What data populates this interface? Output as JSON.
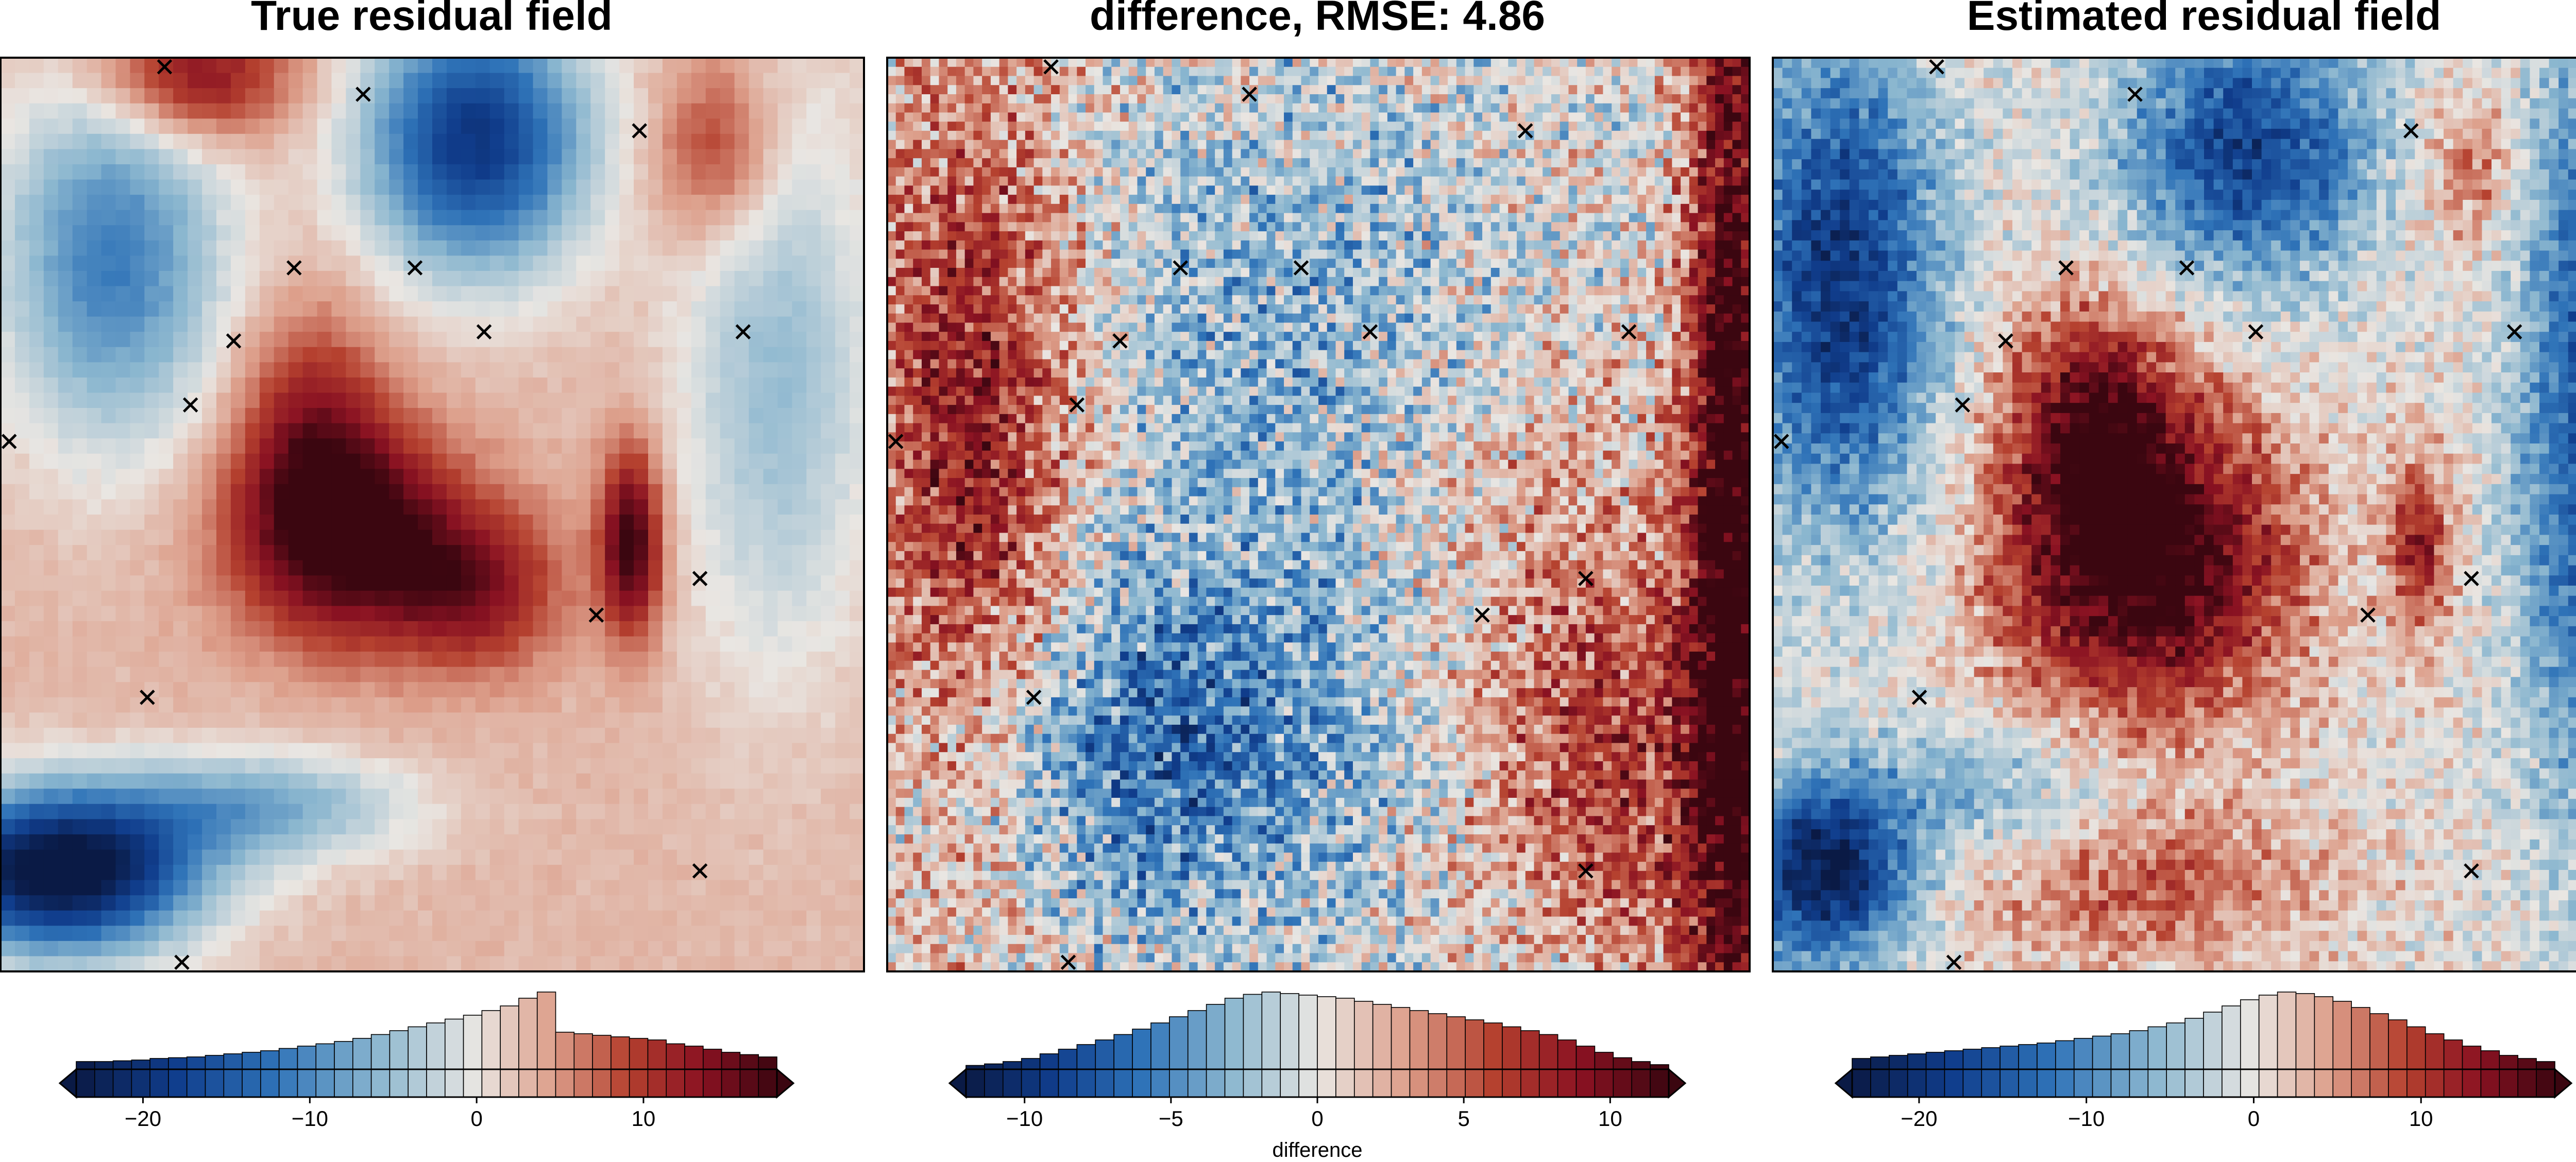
{
  "chart_data": [
    {
      "type": "heatmap",
      "title": "True residual field",
      "grid": {
        "rows": 60,
        "cols": 60
      },
      "texture": "smooth",
      "seed": 11,
      "baseline": 3,
      "blobs": [
        {
          "x": 0.4,
          "y": 0.52,
          "sx": 0.09,
          "sy": 0.08,
          "amp": 17
        },
        {
          "x": 0.55,
          "y": 0.58,
          "sx": 0.07,
          "sy": 0.06,
          "amp": 10
        },
        {
          "x": 0.36,
          "y": 0.4,
          "sx": 0.06,
          "sy": 0.09,
          "amp": 8
        },
        {
          "x": 0.73,
          "y": 0.53,
          "sx": 0.025,
          "sy": 0.07,
          "amp": 16
        },
        {
          "x": 0.22,
          "y": 0.02,
          "sx": 0.08,
          "sy": 0.05,
          "amp": 12
        },
        {
          "x": 0.83,
          "y": 0.1,
          "sx": 0.05,
          "sy": 0.07,
          "amp": 8
        },
        {
          "x": 0.55,
          "y": 0.09,
          "sx": 0.09,
          "sy": 0.1,
          "amp": -22
        },
        {
          "x": 0.13,
          "y": 0.22,
          "sx": 0.09,
          "sy": 0.14,
          "amp": -14
        },
        {
          "x": 0.9,
          "y": 0.35,
          "sx": 0.08,
          "sy": 0.22,
          "amp": -8
        },
        {
          "x": 0.07,
          "y": 0.89,
          "sx": 0.11,
          "sy": 0.06,
          "amp": -30
        },
        {
          "x": 0.3,
          "y": 0.82,
          "sx": 0.12,
          "sy": 0.04,
          "amp": -10
        }
      ],
      "noise": 0.5,
      "colorbar": {
        "ticks": [
          -20,
          -10,
          0,
          10
        ],
        "range": [
          -24,
          18
        ],
        "label": "",
        "hist_shape": [
          0.1,
          0.1,
          0.11,
          0.12,
          0.14,
          0.15,
          0.16,
          0.18,
          0.2,
          0.22,
          0.24,
          0.27,
          0.3,
          0.33,
          0.36,
          0.4,
          0.45,
          0.5,
          0.55,
          0.6,
          0.65,
          0.7,
          0.76,
          0.82,
          0.92,
          1.0,
          0.48,
          0.46,
          0.44,
          0.42,
          0.4,
          0.38,
          0.33,
          0.3,
          0.26,
          0.22,
          0.19,
          0.16
        ]
      }
    },
    {
      "type": "heatmap",
      "title": "difference, RMSE: 4.86",
      "grid": {
        "rows": 100,
        "cols": 100
      },
      "texture": "noisy",
      "seed": 7,
      "baseline": 0,
      "blobs": [
        {
          "x": 0.1,
          "y": 0.45,
          "sx": 0.09,
          "sy": 0.32,
          "amp": 9
        },
        {
          "x": 0.3,
          "y": 0.75,
          "sx": 0.18,
          "sy": 0.14,
          "amp": -7
        },
        {
          "x": 0.45,
          "y": 0.3,
          "sx": 0.18,
          "sy": 0.2,
          "amp": -3
        },
        {
          "x": 0.98,
          "y": 0.5,
          "sx": 0.04,
          "sy": 0.6,
          "amp": 13
        },
        {
          "x": 0.85,
          "y": 0.8,
          "sx": 0.1,
          "sy": 0.15,
          "amp": 5
        },
        {
          "x": 0.78,
          "y": 0.6,
          "sx": 0.12,
          "sy": 0.2,
          "amp": 3
        }
      ],
      "noise": 3.2,
      "colorbar": {
        "ticks": [
          -10,
          -5,
          0,
          5,
          10
        ],
        "range": [
          -12,
          12
        ],
        "label": "difference",
        "hist_shape": [
          0.05,
          0.07,
          0.1,
          0.14,
          0.2,
          0.26,
          0.32,
          0.38,
          0.45,
          0.52,
          0.6,
          0.68,
          0.76,
          0.84,
          0.92,
          0.97,
          1.0,
          0.98,
          0.96,
          0.94,
          0.92,
          0.88,
          0.84,
          0.8,
          0.76,
          0.72,
          0.68,
          0.64,
          0.6,
          0.55,
          0.5,
          0.45,
          0.38,
          0.3,
          0.22,
          0.15,
          0.1,
          0.06
        ]
      }
    },
    {
      "type": "heatmap",
      "title": "Estimated residual field",
      "grid": {
        "rows": 90,
        "cols": 90
      },
      "texture": "noisy",
      "seed": 23,
      "baseline": 0,
      "blobs": [
        {
          "x": 0.43,
          "y": 0.55,
          "sx": 0.12,
          "sy": 0.12,
          "amp": 21
        },
        {
          "x": 0.37,
          "y": 0.38,
          "sx": 0.07,
          "sy": 0.09,
          "amp": 12
        },
        {
          "x": 0.75,
          "y": 0.53,
          "sx": 0.025,
          "sy": 0.07,
          "amp": 12
        },
        {
          "x": 0.81,
          "y": 0.12,
          "sx": 0.04,
          "sy": 0.06,
          "amp": 8
        },
        {
          "x": 0.44,
          "y": 0.91,
          "sx": 0.14,
          "sy": 0.06,
          "amp": 8
        },
        {
          "x": 0.55,
          "y": 0.1,
          "sx": 0.1,
          "sy": 0.1,
          "amp": -18
        },
        {
          "x": 0.08,
          "y": 0.25,
          "sx": 0.08,
          "sy": 0.18,
          "amp": -20
        },
        {
          "x": 0.95,
          "y": 0.4,
          "sx": 0.06,
          "sy": 0.3,
          "amp": -16
        },
        {
          "x": 0.06,
          "y": 0.89,
          "sx": 0.07,
          "sy": 0.07,
          "amp": -24
        },
        {
          "x": 0.25,
          "y": 0.8,
          "sx": 0.1,
          "sy": 0.05,
          "amp": -7
        }
      ],
      "noise": 3.0,
      "colorbar": {
        "ticks": [
          -20,
          -10,
          0,
          10
        ],
        "range": [
          -24,
          18
        ],
        "label": "",
        "hist_shape": [
          0.14,
          0.16,
          0.18,
          0.2,
          0.22,
          0.24,
          0.26,
          0.28,
          0.3,
          0.32,
          0.34,
          0.37,
          0.4,
          0.43,
          0.46,
          0.5,
          0.55,
          0.6,
          0.66,
          0.74,
          0.82,
          0.9,
          0.96,
          1.0,
          0.98,
          0.94,
          0.88,
          0.8,
          0.72,
          0.64,
          0.55,
          0.46,
          0.38,
          0.3,
          0.24,
          0.18,
          0.14,
          0.1
        ]
      }
    }
  ],
  "markers": {
    "symbol": "×",
    "points": [
      [
        0.19,
        0.01
      ],
      [
        0.42,
        0.04
      ],
      [
        0.74,
        0.08
      ],
      [
        0.34,
        0.23
      ],
      [
        0.48,
        0.23
      ],
      [
        0.56,
        0.3
      ],
      [
        0.86,
        0.3
      ],
      [
        0.27,
        0.31
      ],
      [
        0.22,
        0.38
      ],
      [
        0.01,
        0.42
      ],
      [
        0.81,
        0.57
      ],
      [
        0.69,
        0.61
      ],
      [
        0.17,
        0.7
      ],
      [
        0.81,
        0.89
      ],
      [
        0.21,
        0.99
      ]
    ]
  },
  "colors": {
    "cmap": [
      "#0a1a45",
      "#103d8c",
      "#2f73b8",
      "#8ab6cf",
      "#e9e6e2",
      "#dda08c",
      "#b5412f",
      "#8a1222",
      "#3b0610"
    ],
    "frame": "#000000",
    "marker": "#000000"
  }
}
